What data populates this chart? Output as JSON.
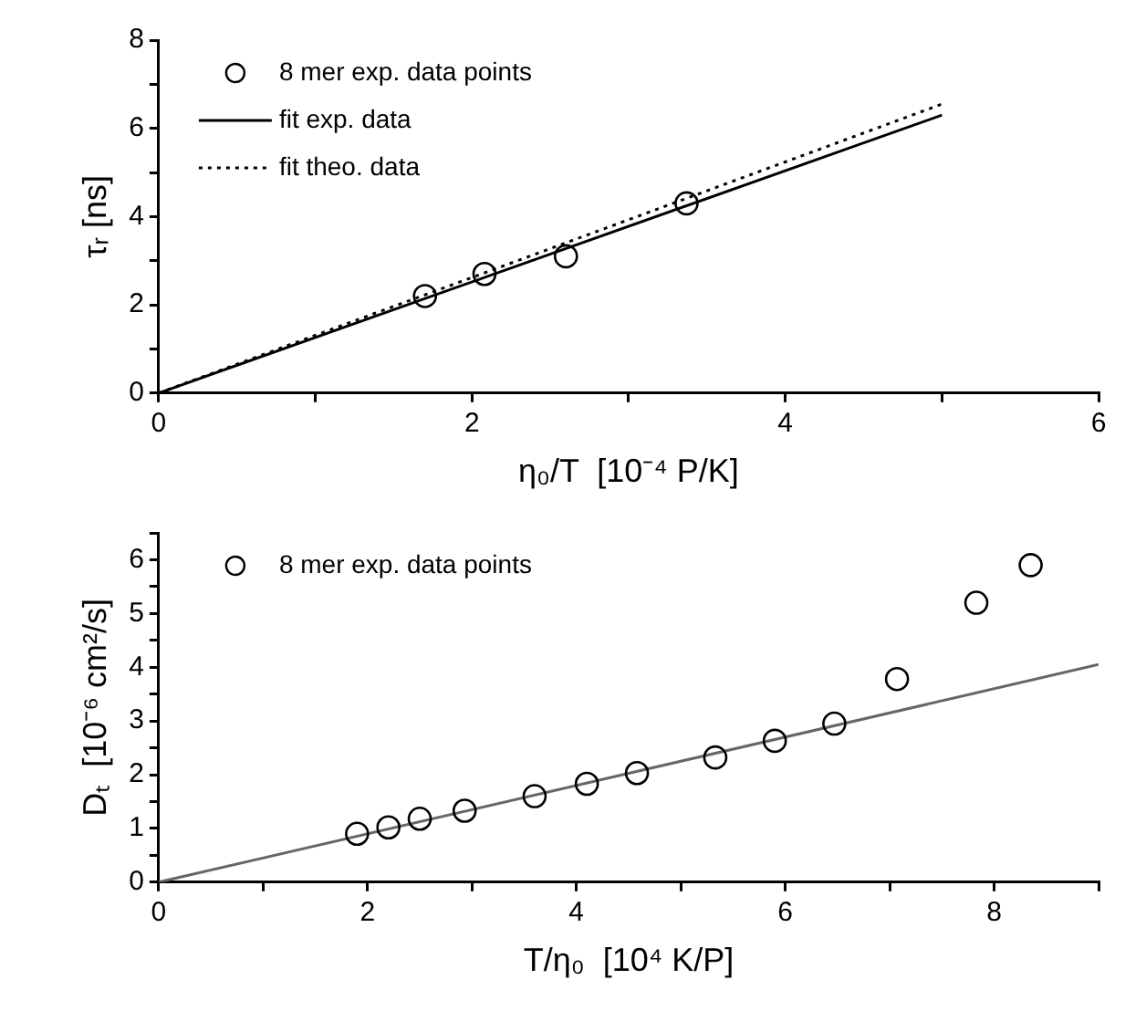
{
  "chart_data": [
    {
      "type": "scatter",
      "xlabel": "η₀/T  [10⁻⁴ P/K]",
      "ylabel": "τᵣ [ns]",
      "xlim": [
        0,
        6
      ],
      "ylim": [
        0,
        8
      ],
      "xticks": [
        0,
        {
          "value": 1,
          "label": null
        },
        2,
        {
          "value": 3,
          "label": null
        },
        4,
        {
          "value": 5,
          "label": null
        },
        6
      ],
      "yticks": [
        0,
        {
          "value": 1,
          "label": null
        },
        2,
        {
          "value": 3,
          "label": null
        },
        4,
        {
          "value": 5,
          "label": null
        },
        6,
        {
          "value": 7,
          "label": null
        },
        8
      ],
      "legend": "top left",
      "series": [
        {
          "name": "8 mer exp. data points",
          "color": "#000000",
          "marker": "circle",
          "x": [
            1.7,
            2.08,
            2.6,
            3.37
          ],
          "values": [
            2.2,
            2.7,
            3.1,
            4.3
          ]
        },
        {
          "name": "fit exp. data",
          "type": "line",
          "color": "#000000",
          "x": [
            0,
            5
          ],
          "values": [
            0,
            6.3
          ],
          "line_style": "solid",
          "marker": "none"
        },
        {
          "name": "fit theo. data",
          "type": "line",
          "color": "#000000",
          "x": [
            0,
            5
          ],
          "values": [
            0,
            6.55
          ],
          "line_style": "dotted",
          "marker": "none"
        }
      ]
    },
    {
      "type": "scatter",
      "xlabel": "T/η₀  [10⁴ K/P]",
      "ylabel": "Dₜ  [10⁻⁶ cm²/s]",
      "xlim": [
        0,
        9
      ],
      "ylim": [
        0,
        6.5
      ],
      "xticks": [
        0,
        {
          "value": 1,
          "label": null
        },
        2,
        {
          "value": 3,
          "label": null
        },
        4,
        {
          "value": 5,
          "label": null
        },
        6,
        {
          "value": 7,
          "label": null
        },
        8,
        {
          "value": 9,
          "label": null
        }
      ],
      "yticks": [
        0,
        {
          "value": 0.5,
          "label": null
        },
        1,
        {
          "value": 1.5,
          "label": null
        },
        2,
        {
          "value": 2.5,
          "label": null
        },
        3,
        {
          "value": 3.5,
          "label": null
        },
        4,
        {
          "value": 4.5,
          "label": null
        },
        5,
        {
          "value": 5.5,
          "label": null
        },
        6,
        {
          "value": 6.5,
          "label": null
        }
      ],
      "legend": "top left",
      "series": [
        {
          "name": "8 mer exp. data points",
          "color": "#000000",
          "marker": "circle",
          "x": [
            1.9,
            2.2,
            2.5,
            2.93,
            3.6,
            4.1,
            4.58,
            5.33,
            5.9,
            6.47,
            7.07,
            7.83,
            8.35
          ],
          "values": [
            0.9,
            1.02,
            1.18,
            1.33,
            1.6,
            1.83,
            2.03,
            2.32,
            2.63,
            2.95,
            3.78,
            5.2,
            5.9
          ]
        },
        {
          "type": "line",
          "color": "#666666",
          "x": [
            0,
            9
          ],
          "values": [
            0,
            4.05
          ],
          "line_style": "solid",
          "marker": "none"
        }
      ]
    }
  ]
}
